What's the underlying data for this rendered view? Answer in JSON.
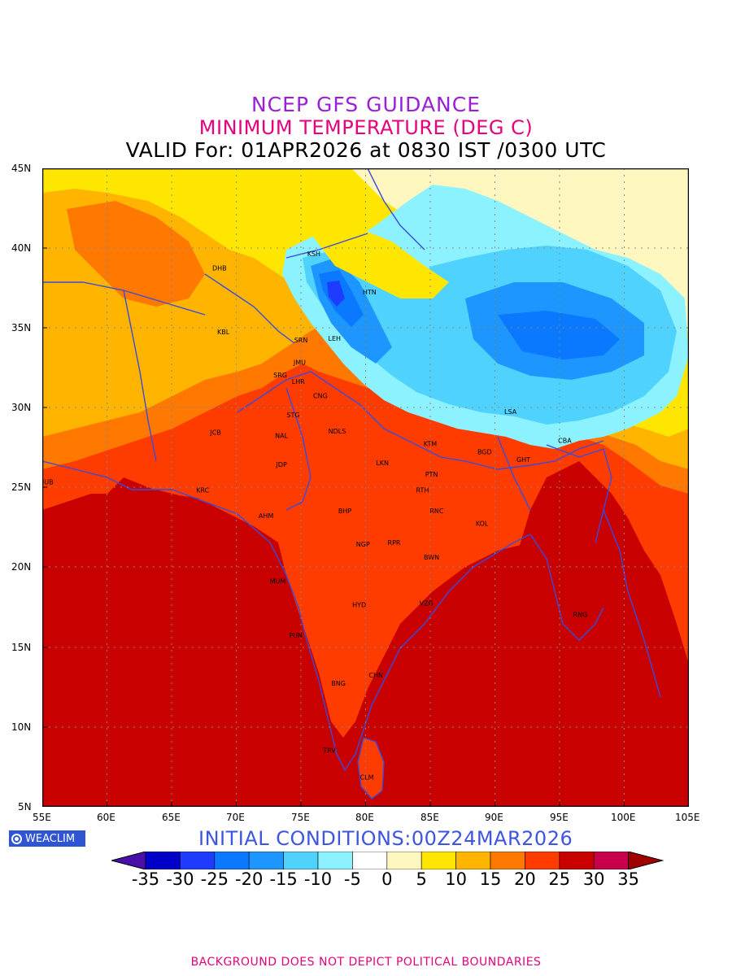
{
  "header": {
    "title": "NCEP GFS GUIDANCE",
    "subtitle": "MINIMUM TEMPERATURE (DEG C)",
    "valid": "VALID For: 01APR2026 at 0830 IST /0300 UTC"
  },
  "axes": {
    "lat_labels": [
      "45N",
      "40N",
      "35N",
      "30N",
      "25N",
      "20N",
      "15N",
      "10N",
      "5N"
    ],
    "lon_labels": [
      "55E",
      "60E",
      "65E",
      "70E",
      "75E",
      "80E",
      "85E",
      "90E",
      "95E",
      "100E",
      "105E"
    ]
  },
  "cities": [
    {
      "code": "KSH",
      "lon": 76.0,
      "lat": 39.5
    },
    {
      "code": "DHB",
      "lon": 68.7,
      "lat": 38.6
    },
    {
      "code": "HTN",
      "lon": 80.3,
      "lat": 37.1
    },
    {
      "code": "KBL",
      "lon": 69.0,
      "lat": 34.6
    },
    {
      "code": "SRN",
      "lon": 75.0,
      "lat": 34.1
    },
    {
      "code": "LEH",
      "lon": 77.6,
      "lat": 34.2
    },
    {
      "code": "JMU",
      "lon": 74.9,
      "lat": 32.7
    },
    {
      "code": "SRG",
      "lon": 73.4,
      "lat": 31.9
    },
    {
      "code": "LHR",
      "lon": 74.8,
      "lat": 31.5
    },
    {
      "code": "CNG",
      "lon": 76.5,
      "lat": 30.6
    },
    {
      "code": "STG",
      "lon": 74.4,
      "lat": 29.4
    },
    {
      "code": "LSA",
      "lon": 91.2,
      "lat": 29.6
    },
    {
      "code": "JCB",
      "lon": 68.4,
      "lat": 28.3
    },
    {
      "code": "NAL",
      "lon": 73.5,
      "lat": 28.1
    },
    {
      "code": "NDLS",
      "lon": 77.8,
      "lat": 28.4
    },
    {
      "code": "KTM",
      "lon": 85.0,
      "lat": 27.6
    },
    {
      "code": "CBA",
      "lon": 95.4,
      "lat": 27.8
    },
    {
      "code": "BGD",
      "lon": 89.2,
      "lat": 27.1
    },
    {
      "code": "GHT",
      "lon": 92.2,
      "lat": 26.6
    },
    {
      "code": "JDP",
      "lon": 73.5,
      "lat": 26.3
    },
    {
      "code": "LKN",
      "lon": 81.3,
      "lat": 26.4
    },
    {
      "code": "PTN",
      "lon": 85.1,
      "lat": 25.7
    },
    {
      "code": "DUB",
      "lon": 55.3,
      "lat": 25.2
    },
    {
      "code": "KRC",
      "lon": 67.4,
      "lat": 24.7
    },
    {
      "code": "RTH",
      "lon": 84.4,
      "lat": 24.7
    },
    {
      "code": "BHP",
      "lon": 78.4,
      "lat": 23.4
    },
    {
      "code": "AHM",
      "lon": 72.3,
      "lat": 23.1
    },
    {
      "code": "RNC",
      "lon": 85.5,
      "lat": 23.4
    },
    {
      "code": "KOL",
      "lon": 89.0,
      "lat": 22.6
    },
    {
      "code": "NGP",
      "lon": 79.8,
      "lat": 21.3
    },
    {
      "code": "RPR",
      "lon": 82.2,
      "lat": 21.4
    },
    {
      "code": "BWN",
      "lon": 85.1,
      "lat": 20.5
    },
    {
      "code": "MUM",
      "lon": 73.2,
      "lat": 19.0
    },
    {
      "code": "HYD",
      "lon": 79.5,
      "lat": 17.5
    },
    {
      "code": "VZG",
      "lon": 84.7,
      "lat": 17.6
    },
    {
      "code": "RNG",
      "lon": 96.6,
      "lat": 16.9
    },
    {
      "code": "PUN",
      "lon": 74.6,
      "lat": 15.6
    },
    {
      "code": "CHN",
      "lon": 80.8,
      "lat": 13.1
    },
    {
      "code": "BNG",
      "lon": 77.9,
      "lat": 12.6
    },
    {
      "code": "TRV",
      "lon": 77.2,
      "lat": 8.4
    },
    {
      "code": "CLM",
      "lon": 80.1,
      "lat": 6.7
    }
  ],
  "legend": {
    "colors": [
      "#4a0fa8",
      "#0000c8",
      "#1e3cff",
      "#0a78ff",
      "#1e96ff",
      "#50d2ff",
      "#8cf2ff",
      "#ffffff",
      "#fff6c0",
      "#ffe600",
      "#ffb400",
      "#ff7800",
      "#ff3c00",
      "#c80000",
      "#c8004b",
      "#a00000"
    ],
    "ticks": [
      "-35",
      "-30",
      "-25",
      "-20",
      "-15",
      "-10",
      "-5",
      "0",
      "5",
      "10",
      "15",
      "20",
      "25",
      "30",
      "35"
    ]
  },
  "logo": {
    "text": "WEACLIM"
  },
  "initial_conditions": "INITIAL CONDITIONS:00Z24MAR2026",
  "footer": "BACKGROUND DOES NOT DEPICT POLITICAL BOUNDARIES"
}
